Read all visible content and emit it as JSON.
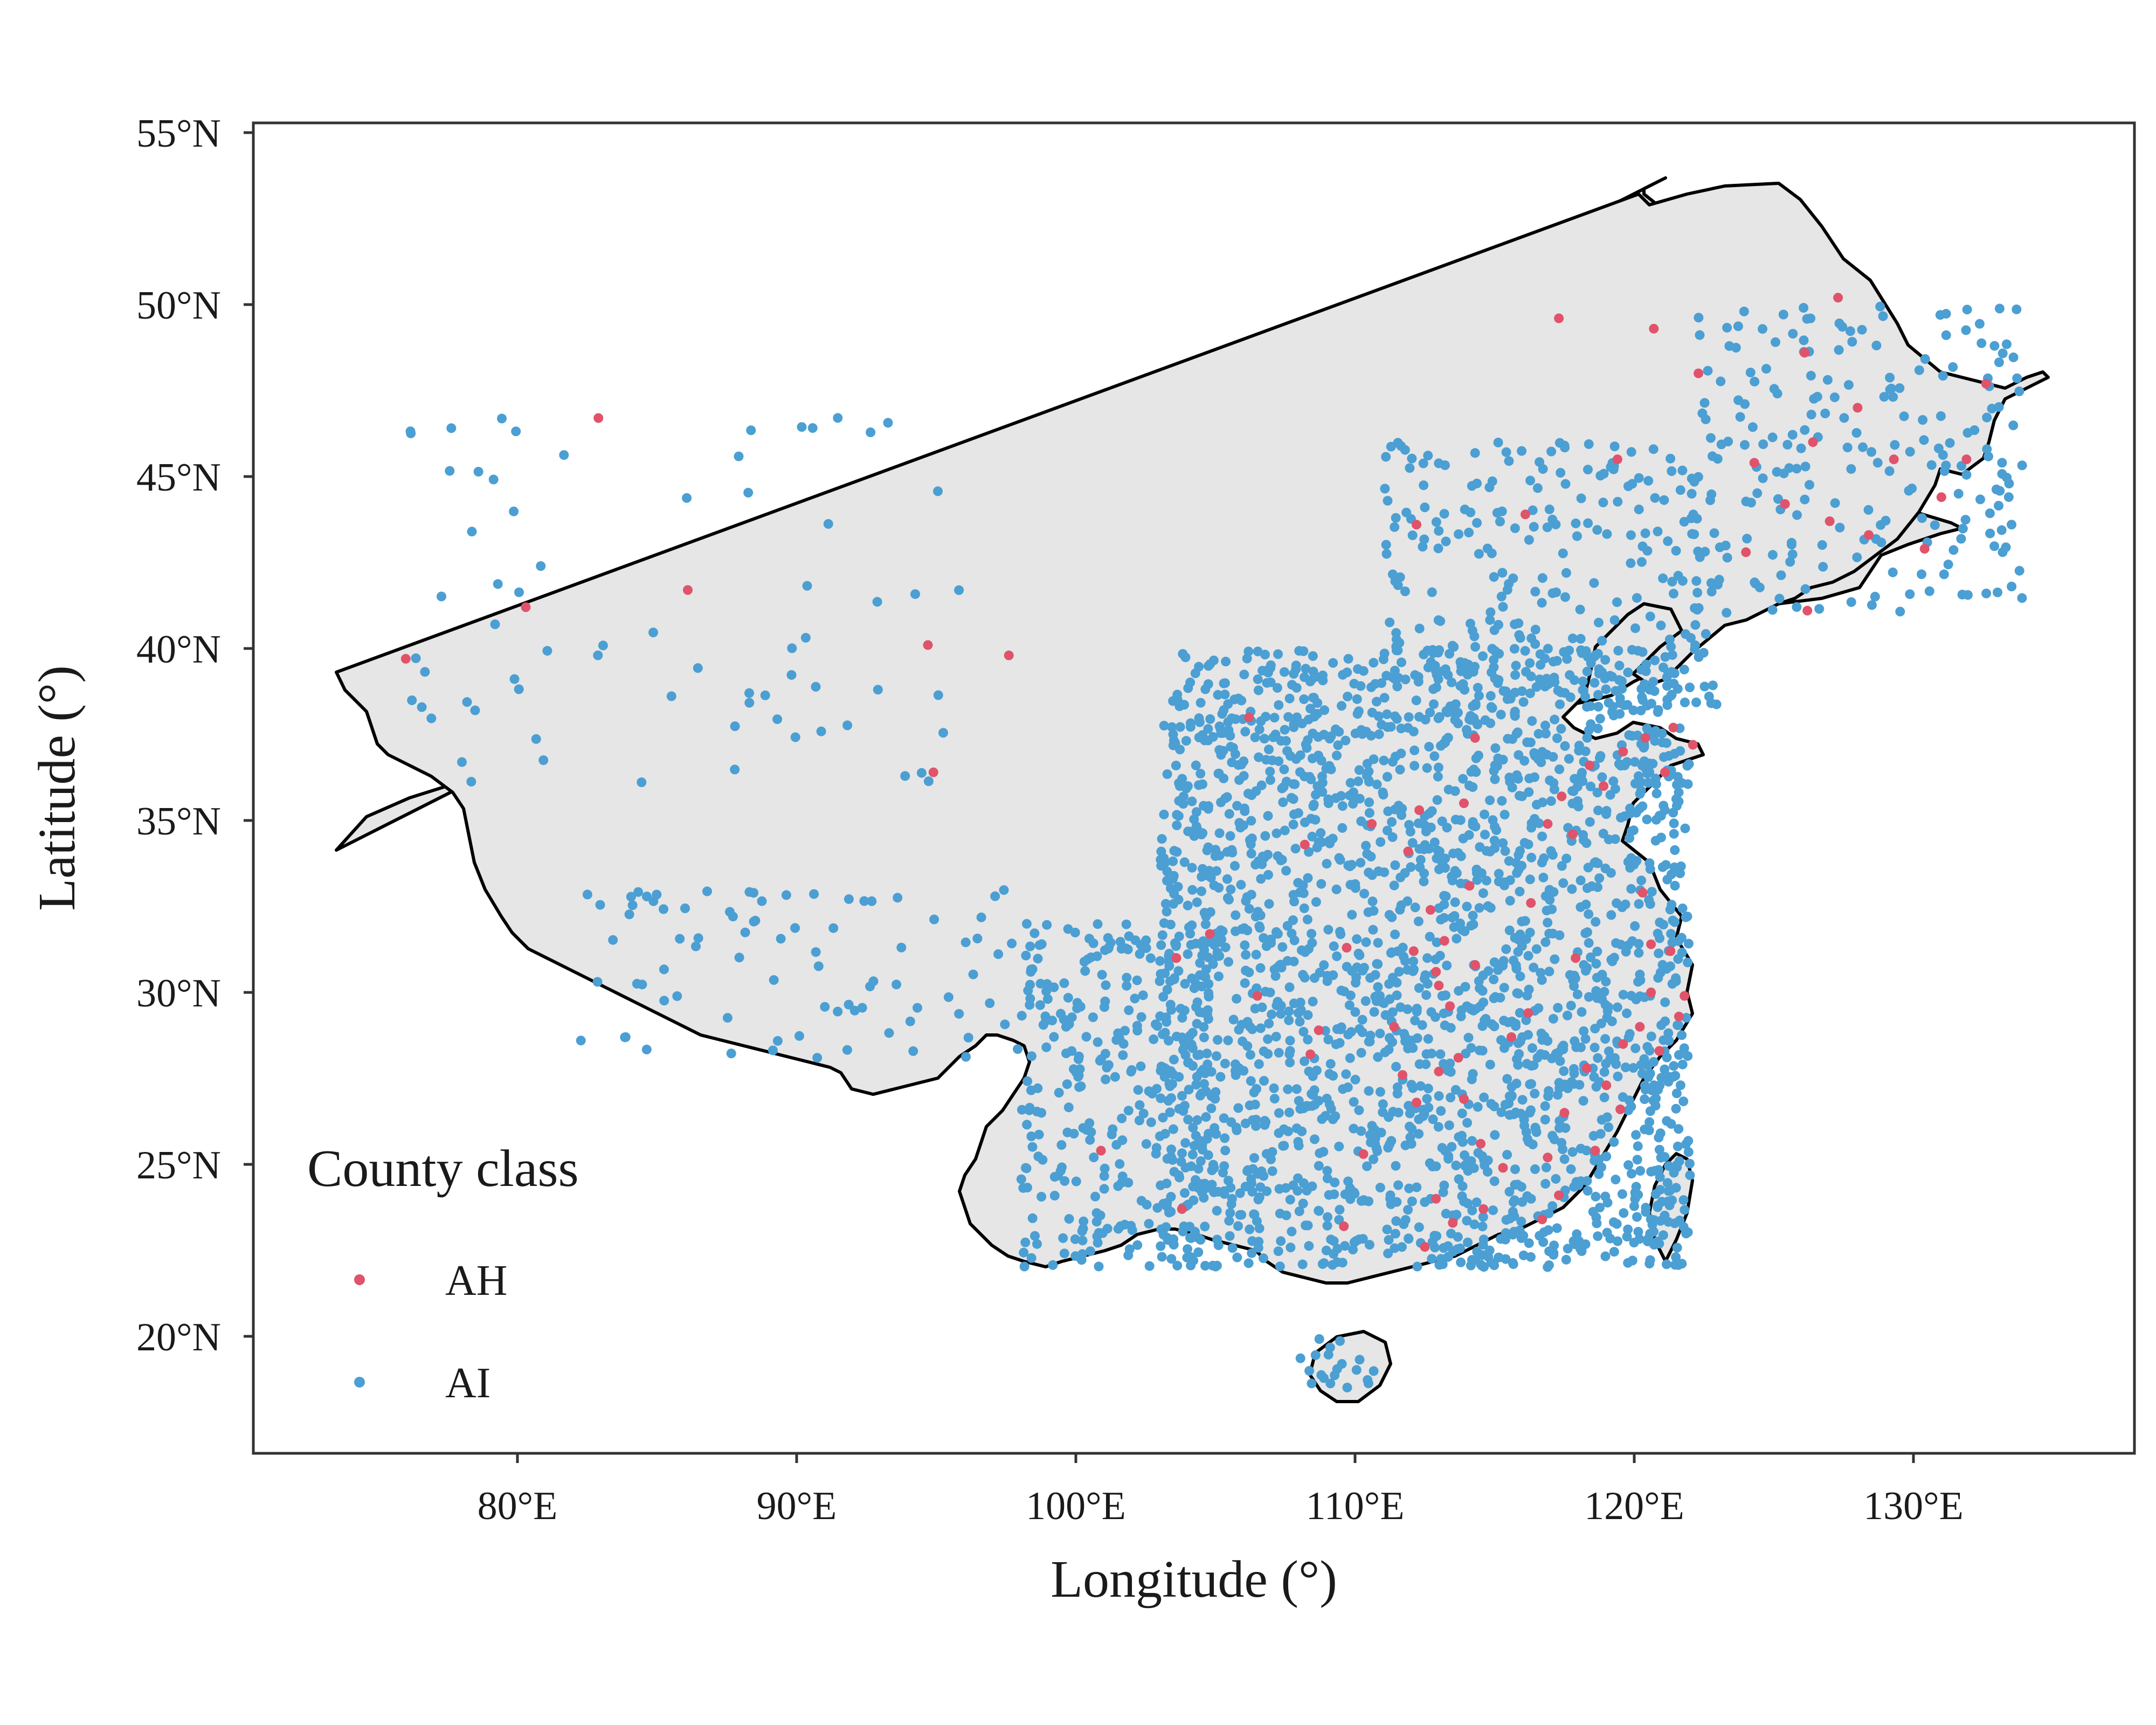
{
  "map": {
    "xlabel": "Longitude (°)",
    "ylabel": "Latitude (°)",
    "x_ticks": [
      "80°E",
      "90°E",
      "100°E",
      "110°E",
      "120°E",
      "130°E"
    ],
    "y_ticks": [
      "55°N",
      "50°N",
      "45°N",
      "40°N",
      "35°N",
      "30°N",
      "25°N",
      "20°N"
    ],
    "legend": {
      "title": "County class",
      "items": [
        {
          "label": "AH",
          "color": "#e0536a"
        },
        {
          "label": "AI",
          "color": "#4b9fd3"
        }
      ]
    },
    "colors": {
      "land_fill": "#e6e6e6",
      "border": "#000000",
      "frame": "#333333"
    }
  },
  "chart_data": {
    "type": "scatter",
    "xlabel": "Longitude (°)",
    "ylabel": "Latitude (°)",
    "xlim": [
      71.5,
      138
    ],
    "ylim": [
      16.7,
      55.3
    ],
    "grid": false,
    "legend_position": "bottom-left",
    "series": [
      {
        "name": "AH",
        "color": "#e0536a",
        "points": [
          [
            82.9,
            46.7
          ],
          [
            76.0,
            39.7
          ],
          [
            80.3,
            41.2
          ],
          [
            86.1,
            41.7
          ],
          [
            94.7,
            40.1
          ],
          [
            97.6,
            39.8
          ],
          [
            94.9,
            36.4
          ],
          [
            117.3,
            49.6
          ],
          [
            120.7,
            49.3
          ],
          [
            112.2,
            43.6
          ],
          [
            116.1,
            43.9
          ],
          [
            119.4,
            45.5
          ],
          [
            122.3,
            48.0
          ],
          [
            124.3,
            45.4
          ],
          [
            126.1,
            48.6
          ],
          [
            127.3,
            50.2
          ],
          [
            128.0,
            47.0
          ],
          [
            129.3,
            45.5
          ],
          [
            127.0,
            43.7
          ],
          [
            126.4,
            46.0
          ],
          [
            125.4,
            44.2
          ],
          [
            124.0,
            42.8
          ],
          [
            126.2,
            41.1
          ],
          [
            128.4,
            43.3
          ],
          [
            130.4,
            42.9
          ],
          [
            131.9,
            45.5
          ],
          [
            132.6,
            47.7
          ],
          [
            131.0,
            44.4
          ],
          [
            120.4,
            37.4
          ],
          [
            122.1,
            37.2
          ],
          [
            118.9,
            36.0
          ],
          [
            116.9,
            34.9
          ],
          [
            118.4,
            36.6
          ],
          [
            117.4,
            35.7
          ],
          [
            119.6,
            37.0
          ],
          [
            121.4,
            37.7
          ],
          [
            121.1,
            36.4
          ],
          [
            117.8,
            34.6
          ],
          [
            121.3,
            31.2
          ],
          [
            120.6,
            31.4
          ],
          [
            120.3,
            32.9
          ],
          [
            121.8,
            29.9
          ],
          [
            120.2,
            29.0
          ],
          [
            119.6,
            28.5
          ],
          [
            118.3,
            27.8
          ],
          [
            117.5,
            26.5
          ],
          [
            116.9,
            25.2
          ],
          [
            117.3,
            24.1
          ],
          [
            118.6,
            25.4
          ],
          [
            119.5,
            26.6
          ],
          [
            120.9,
            28.3
          ],
          [
            121.6,
            29.3
          ],
          [
            112.7,
            32.4
          ],
          [
            112.1,
            31.2
          ],
          [
            112.9,
            30.6
          ],
          [
            113.4,
            29.6
          ],
          [
            113.7,
            28.1
          ],
          [
            113.0,
            27.7
          ],
          [
            112.2,
            26.8
          ],
          [
            111.7,
            27.6
          ],
          [
            113.9,
            26.9
          ],
          [
            114.5,
            25.6
          ],
          [
            115.6,
            28.7
          ],
          [
            116.2,
            29.4
          ],
          [
            114.3,
            30.8
          ],
          [
            113.0,
            30.2
          ],
          [
            113.2,
            31.5
          ],
          [
            111.9,
            34.1
          ],
          [
            112.3,
            35.3
          ],
          [
            114.3,
            37.4
          ],
          [
            110.6,
            34.9
          ],
          [
            108.2,
            34.3
          ],
          [
            106.2,
            38.0
          ],
          [
            104.8,
            31.7
          ],
          [
            103.6,
            31.0
          ],
          [
            106.5,
            29.9
          ],
          [
            109.6,
            23.2
          ],
          [
            113.5,
            23.3
          ],
          [
            112.5,
            22.6
          ],
          [
            110.3,
            25.3
          ],
          [
            112.9,
            24.0
          ],
          [
            114.6,
            23.7
          ],
          [
            115.3,
            24.9
          ],
          [
            116.7,
            23.4
          ],
          [
            119.0,
            27.3
          ],
          [
            120.6,
            30.0
          ],
          [
            114.1,
            33.1
          ],
          [
            116.3,
            32.6
          ],
          [
            117.9,
            31.0
          ],
          [
            113.9,
            35.5
          ],
          [
            109.7,
            31.3
          ],
          [
            108.4,
            28.2
          ],
          [
            103.8,
            23.7
          ],
          [
            100.9,
            25.4
          ],
          [
            111.4,
            29.0
          ],
          [
            108.7,
            28.9
          ]
        ]
      },
      {
        "name": "AI",
        "color": "#4b9fd3",
        "points": []
      }
    ],
    "annotations": [
      "County class",
      "AH",
      "AI"
    ]
  }
}
